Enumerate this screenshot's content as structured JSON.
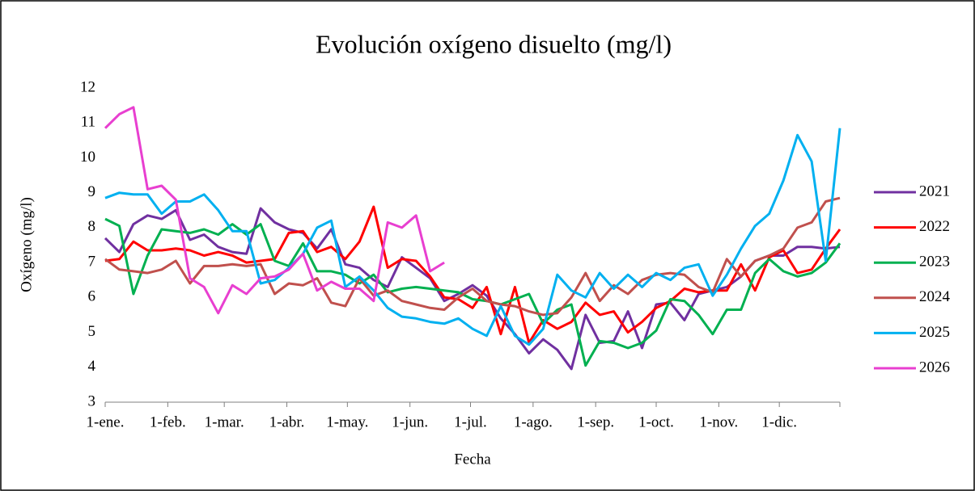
{
  "chart_data": {
    "type": "line",
    "title": "Evolución oxígeno disuelto (mg/l)",
    "x_label": "Fecha",
    "y_label": "Oxígeno (mg/l)",
    "x": [
      0,
      7,
      14,
      21,
      28,
      35,
      42,
      49,
      56,
      63,
      70,
      77,
      84,
      91,
      98,
      105,
      112,
      119,
      126,
      133,
      140,
      147,
      154,
      161,
      168,
      175,
      182,
      189,
      196,
      203,
      210,
      217,
      224,
      231,
      238,
      245,
      252,
      259,
      266,
      273,
      280,
      287,
      294,
      301,
      308,
      315,
      322,
      329,
      336,
      343,
      350,
      357,
      364
    ],
    "xlim": [
      0,
      364
    ],
    "xticks": [
      {
        "value": 0,
        "label": "1-ene."
      },
      {
        "value": 31,
        "label": "1-feb."
      },
      {
        "value": 59,
        "label": "1-mar."
      },
      {
        "value": 90,
        "label": "1-abr."
      },
      {
        "value": 120,
        "label": "1-may."
      },
      {
        "value": 151,
        "label": "1-jun."
      },
      {
        "value": 181,
        "label": "1-jul."
      },
      {
        "value": 212,
        "label": "1-ago."
      },
      {
        "value": 243,
        "label": "1-sep."
      },
      {
        "value": 273,
        "label": "1-oct."
      },
      {
        "value": 304,
        "label": "1-nov."
      },
      {
        "value": 334,
        "label": "1-dic."
      }
    ],
    "ylim": [
      3,
      12
    ],
    "yticks": [
      3,
      4,
      5,
      6,
      7,
      8,
      9,
      10,
      11,
      12
    ],
    "grid": false,
    "legend": "right",
    "series": [
      {
        "name": "2021",
        "color": "#7030a0",
        "values": [
          7.7,
          7.3,
          8.1,
          8.35,
          8.25,
          8.5,
          7.65,
          7.8,
          7.45,
          7.3,
          7.25,
          8.55,
          8.15,
          7.95,
          7.85,
          7.4,
          7.95,
          6.95,
          6.85,
          6.5,
          6.3,
          7.15,
          6.85,
          6.55,
          5.9,
          6.1,
          6.35,
          6.05,
          5.4,
          4.95,
          4.4,
          4.8,
          4.5,
          3.95,
          5.5,
          4.7,
          4.75,
          5.6,
          4.55,
          5.8,
          5.85,
          5.35,
          6.1,
          6.2,
          6.3,
          6.6,
          7.05,
          7.2,
          7.2,
          7.45,
          7.45,
          7.4,
          7.45
        ]
      },
      {
        "name": "2022",
        "color": "#ff0000",
        "values": [
          7.05,
          7.1,
          7.6,
          7.35,
          7.35,
          7.4,
          7.35,
          7.2,
          7.3,
          7.2,
          7.0,
          7.05,
          7.1,
          7.85,
          7.9,
          7.3,
          7.45,
          7.1,
          7.6,
          8.6,
          6.85,
          7.1,
          7.05,
          6.6,
          6.0,
          5.95,
          5.7,
          6.3,
          4.95,
          6.3,
          4.7,
          5.35,
          5.1,
          5.3,
          5.85,
          5.5,
          5.6,
          5.0,
          5.3,
          5.7,
          5.9,
          6.25,
          6.15,
          6.2,
          6.2,
          6.95,
          6.2,
          7.15,
          7.35,
          6.7,
          6.8,
          7.4,
          7.95
        ]
      },
      {
        "name": "2023",
        "color": "#00b050",
        "values": [
          8.25,
          8.05,
          6.1,
          7.2,
          7.95,
          7.9,
          7.85,
          7.95,
          7.8,
          8.1,
          7.8,
          8.1,
          7.05,
          6.9,
          7.55,
          6.75,
          6.75,
          6.65,
          6.4,
          6.65,
          6.15,
          6.25,
          6.3,
          6.25,
          6.2,
          6.15,
          5.95,
          5.9,
          5.8,
          5.95,
          6.1,
          5.25,
          5.65,
          5.8,
          4.05,
          4.75,
          4.7,
          4.55,
          4.7,
          5.05,
          5.95,
          5.9,
          5.5,
          4.95,
          5.65,
          5.65,
          6.7,
          7.1,
          6.75,
          6.6,
          6.7,
          7.0,
          7.55
        ]
      },
      {
        "name": "2024",
        "color": "#c0504d",
        "values": [
          7.1,
          6.8,
          6.75,
          6.7,
          6.8,
          7.05,
          6.4,
          6.9,
          6.9,
          6.95,
          6.9,
          6.95,
          6.1,
          6.4,
          6.35,
          6.55,
          5.85,
          5.75,
          6.55,
          6.05,
          6.2,
          5.9,
          5.8,
          5.7,
          5.65,
          6.0,
          6.25,
          5.9,
          5.8,
          5.75,
          5.6,
          5.5,
          5.55,
          6.0,
          6.7,
          5.9,
          6.35,
          6.1,
          6.5,
          6.65,
          6.7,
          6.65,
          6.3,
          6.15,
          7.1,
          6.6,
          7.05,
          7.2,
          7.4,
          8.0,
          8.15,
          8.75,
          8.85
        ]
      },
      {
        "name": "2025",
        "color": "#00b0f0",
        "values": [
          8.85,
          9.0,
          8.95,
          8.95,
          8.4,
          8.75,
          8.75,
          8.95,
          8.5,
          7.9,
          7.9,
          6.4,
          6.5,
          6.85,
          7.25,
          8.0,
          8.2,
          6.3,
          6.6,
          6.2,
          5.7,
          5.45,
          5.4,
          5.3,
          5.25,
          5.4,
          5.1,
          4.9,
          5.75,
          4.9,
          4.65,
          5.1,
          6.65,
          6.2,
          6.0,
          6.7,
          6.25,
          6.65,
          6.3,
          6.7,
          6.5,
          6.85,
          6.95,
          6.05,
          6.65,
          7.4,
          8.05,
          8.4,
          9.35,
          10.65,
          9.9,
          7.05,
          10.85
        ]
      },
      {
        "name": "2026",
        "color": "#e83fd0",
        "values": [
          10.85,
          11.25,
          11.45,
          9.1,
          9.2,
          8.8,
          6.55,
          6.3,
          5.55,
          6.35,
          6.1,
          6.55,
          6.6,
          6.8,
          7.25,
          6.2,
          6.45,
          6.25,
          6.25,
          5.9,
          8.15,
          8.0,
          8.35,
          6.75,
          7.0,
          null,
          null,
          null,
          null,
          null,
          null,
          null,
          null,
          null,
          null,
          null,
          null,
          null,
          null,
          null,
          null,
          null,
          null,
          null,
          null,
          null,
          null,
          null,
          null,
          null,
          null,
          null,
          null
        ]
      }
    ]
  }
}
